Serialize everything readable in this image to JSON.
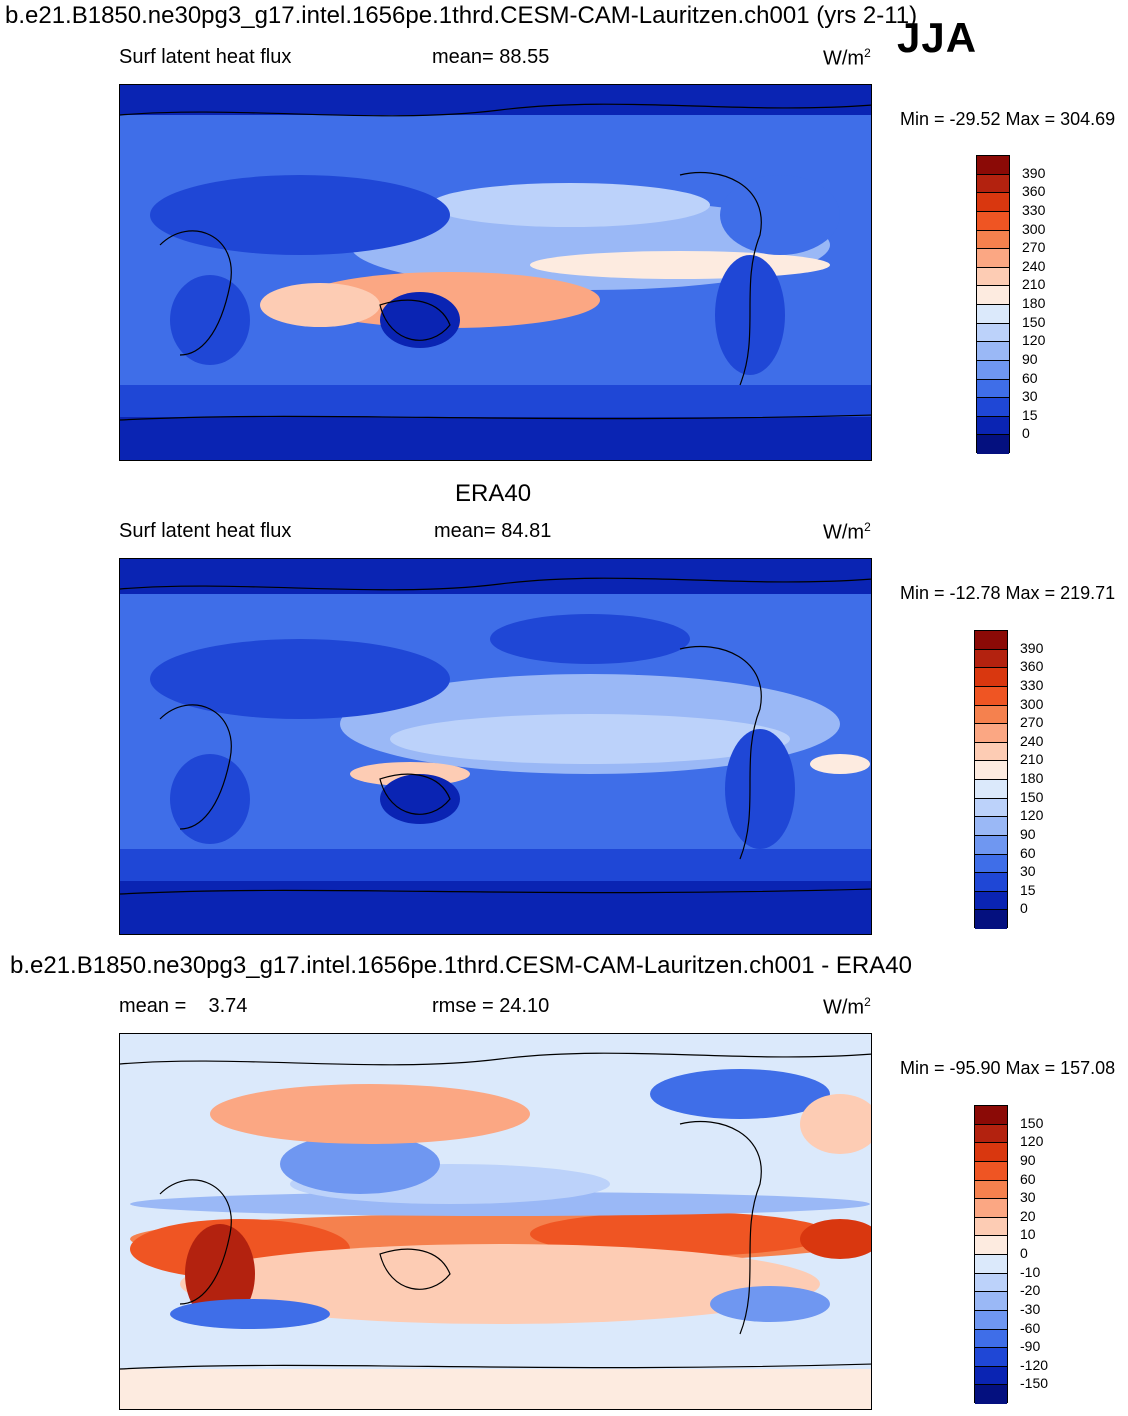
{
  "main_title": "b.e21.B1850.ne30pg3_g17.intel.1656pe.1thrd.CESM-CAM-Lauritzen.ch001 (yrs 2-11)",
  "season": "JJA",
  "panels": [
    {
      "header": "",
      "left_label": "Surf latent heat flux",
      "center_label": "mean=  88.55",
      "unit": "W/m",
      "unit_sup": "2",
      "minmax": "Min = -29.52 Max = 304.69"
    },
    {
      "header": "ERA40",
      "left_label": "Surf latent heat flux",
      "center_label": "mean=  84.81",
      "unit": "W/m",
      "unit_sup": "2",
      "minmax": "Min = -12.78 Max = 219.71"
    },
    {
      "header": "b.e21.B1850.ne30pg3_g17.intel.1656pe.1thrd.CESM-CAM-Lauritzen.ch001 - ERA40",
      "left_label": "mean =    3.74",
      "center_label": "rmse =  24.10",
      "unit": "W/m",
      "unit_sup": "2",
      "minmax": "Min = -95.90 Max = 157.08"
    }
  ],
  "colorbar_abs": {
    "labels": [
      "390",
      "360",
      "330",
      "300",
      "270",
      "240",
      "210",
      "180",
      "150",
      "120",
      "90",
      "60",
      "30",
      "15",
      "0"
    ],
    "colors": [
      "#8b0a06",
      "#b3220f",
      "#d9370f",
      "#ef5523",
      "#f5814e",
      "#fba783",
      "#fdccb4",
      "#fdebe0",
      "#dbe9fb",
      "#bcd2fa",
      "#9ab8f6",
      "#6f97f1",
      "#3f6ee8",
      "#1f47d6",
      "#0a24b3",
      "#04107f"
    ]
  },
  "colorbar_diff": {
    "labels": [
      "150",
      "120",
      "90",
      "60",
      "30",
      "20",
      "10",
      "0",
      "-10",
      "-20",
      "-30",
      "-60",
      "-90",
      "-120",
      "-150"
    ],
    "colors": [
      "#8b0a06",
      "#b3220f",
      "#d9370f",
      "#ef5523",
      "#f5814e",
      "#fba783",
      "#fdccb4",
      "#fdebe0",
      "#dbe9fb",
      "#bcd2fa",
      "#9ab8f6",
      "#6f97f1",
      "#3f6ee8",
      "#1f47d6",
      "#0a24b3",
      "#04107f"
    ]
  }
}
